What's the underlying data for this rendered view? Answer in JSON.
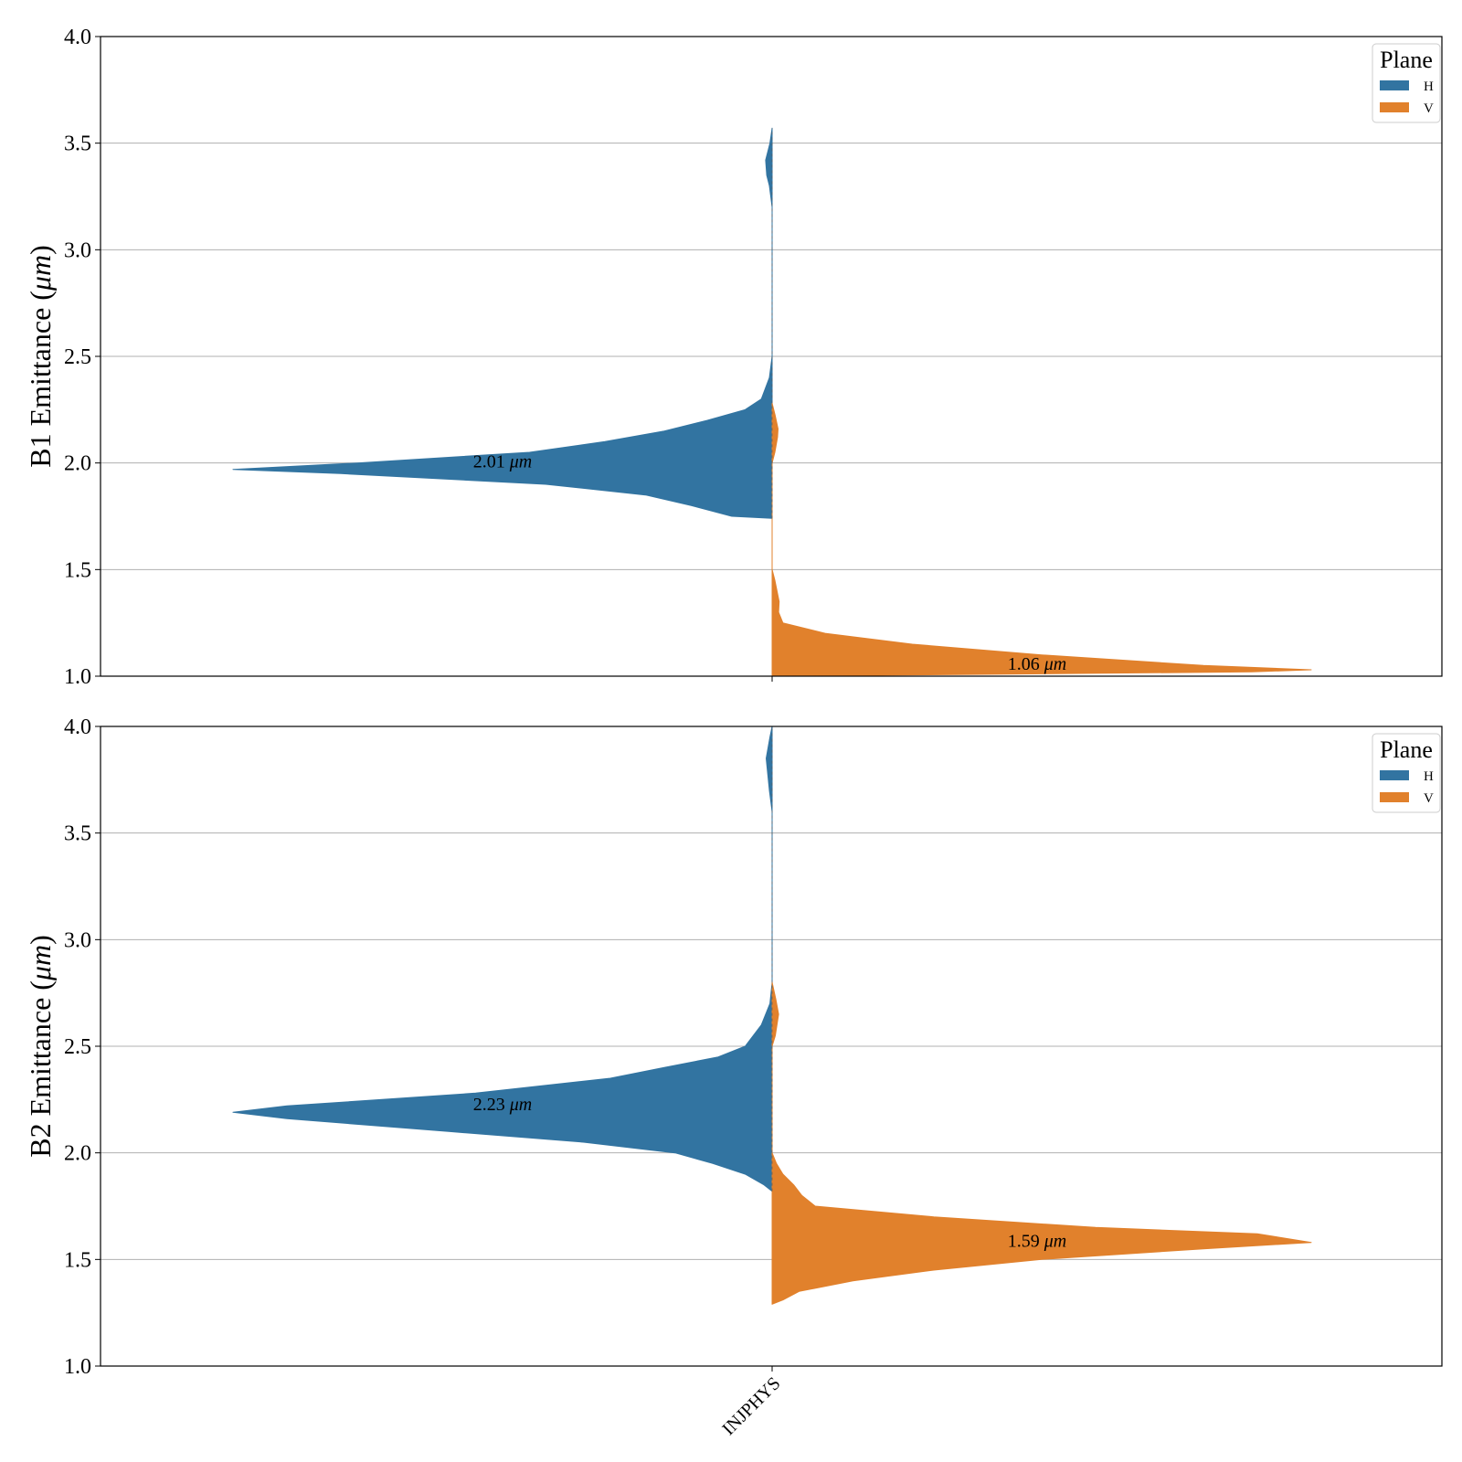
{
  "chart_data": [
    {
      "type": "violin",
      "category": "INJPHYS",
      "ylabel": "B1 Emittance (μm)",
      "ylim": [
        1.0,
        4.0
      ],
      "yticks": [
        "1.0",
        "1.5",
        "2.0",
        "2.5",
        "3.0",
        "3.5",
        "4.0"
      ],
      "grid": "horizontal",
      "legend": {
        "title": "Plane",
        "placement": "top-right",
        "entries": [
          "H",
          "V"
        ]
      },
      "series": [
        {
          "name": "H",
          "color": "#3274a1",
          "side": "left",
          "range": [
            1.74,
            3.57
          ],
          "median_label": "2.01 μm",
          "median": 2.01,
          "density": [
            [
              1.74,
              0.0
            ],
            [
              1.75,
              0.075
            ],
            [
              1.8,
              0.15
            ],
            [
              1.85,
              0.235
            ],
            [
              1.9,
              0.42
            ],
            [
              1.95,
              0.8
            ],
            [
              1.97,
              1.0
            ],
            [
              2.0,
              0.77
            ],
            [
              2.05,
              0.45
            ],
            [
              2.1,
              0.31
            ],
            [
              2.15,
              0.2
            ],
            [
              2.2,
              0.12
            ],
            [
              2.25,
              0.05
            ],
            [
              2.3,
              0.02
            ],
            [
              2.4,
              0.005
            ],
            [
              2.5,
              0.0
            ],
            [
              3.2,
              0.0
            ],
            [
              3.3,
              0.005
            ],
            [
              3.35,
              0.01
            ],
            [
              3.42,
              0.012
            ],
            [
              3.5,
              0.004
            ],
            [
              3.57,
              0.0
            ]
          ]
        },
        {
          "name": "V",
          "color": "#e1812c",
          "side": "right",
          "range": [
            1.0,
            2.28
          ],
          "median_label": "1.06 μm",
          "median": 1.06,
          "density": [
            [
              1.0,
              0.0
            ],
            [
              1.02,
              0.89
            ],
            [
              1.03,
              1.0
            ],
            [
              1.05,
              0.8
            ],
            [
              1.1,
              0.5
            ],
            [
              1.15,
              0.26
            ],
            [
              1.2,
              0.1
            ],
            [
              1.25,
              0.02
            ],
            [
              1.3,
              0.012
            ],
            [
              1.35,
              0.013
            ],
            [
              1.45,
              0.005
            ],
            [
              1.5,
              0.0
            ],
            [
              2.0,
              0.0
            ],
            [
              2.05,
              0.005
            ],
            [
              2.12,
              0.01
            ],
            [
              2.16,
              0.011
            ],
            [
              2.22,
              0.006
            ],
            [
              2.28,
              0.0
            ]
          ]
        }
      ]
    },
    {
      "type": "violin",
      "category": "INJPHYS",
      "ylabel": "B2 Emittance (μm)",
      "ylim": [
        1.0,
        4.0
      ],
      "yticks": [
        "1.0",
        "1.5",
        "2.0",
        "2.5",
        "3.0",
        "3.5",
        "4.0"
      ],
      "grid": "horizontal",
      "legend": {
        "title": "Plane",
        "placement": "top-right",
        "entries": [
          "H",
          "V"
        ]
      },
      "series": [
        {
          "name": "H",
          "color": "#3274a1",
          "side": "left",
          "range": [
            1.82,
            4.0
          ],
          "median_label": "2.23 μm",
          "median": 2.23,
          "density": [
            [
              1.82,
              0.0
            ],
            [
              1.85,
              0.015
            ],
            [
              1.9,
              0.05
            ],
            [
              1.95,
              0.11
            ],
            [
              2.0,
              0.18
            ],
            [
              2.05,
              0.35
            ],
            [
              2.1,
              0.6
            ],
            [
              2.16,
              0.9
            ],
            [
              2.19,
              1.0
            ],
            [
              2.22,
              0.9
            ],
            [
              2.28,
              0.55
            ],
            [
              2.35,
              0.3
            ],
            [
              2.4,
              0.2
            ],
            [
              2.45,
              0.1
            ],
            [
              2.5,
              0.05
            ],
            [
              2.6,
              0.02
            ],
            [
              2.7,
              0.004
            ],
            [
              2.8,
              0.0
            ],
            [
              3.6,
              0.0
            ],
            [
              3.7,
              0.005
            ],
            [
              3.85,
              0.011
            ],
            [
              3.95,
              0.004
            ],
            [
              4.0,
              0.0
            ]
          ]
        },
        {
          "name": "V",
          "color": "#e1812c",
          "side": "right",
          "range": [
            1.29,
            2.8
          ],
          "median_label": "1.59 μm",
          "median": 1.59,
          "density": [
            [
              1.29,
              0.0
            ],
            [
              1.31,
              0.02
            ],
            [
              1.35,
              0.05
            ],
            [
              1.4,
              0.15
            ],
            [
              1.45,
              0.3
            ],
            [
              1.5,
              0.5
            ],
            [
              1.55,
              0.8
            ],
            [
              1.58,
              1.0
            ],
            [
              1.62,
              0.9
            ],
            [
              1.65,
              0.6
            ],
            [
              1.7,
              0.3
            ],
            [
              1.75,
              0.08
            ],
            [
              1.8,
              0.055
            ],
            [
              1.85,
              0.04
            ],
            [
              1.9,
              0.02
            ],
            [
              1.95,
              0.008
            ],
            [
              2.0,
              0.0
            ],
            [
              2.5,
              0.0
            ],
            [
              2.55,
              0.006
            ],
            [
              2.65,
              0.012
            ],
            [
              2.72,
              0.007
            ],
            [
              2.8,
              0.0
            ]
          ]
        }
      ]
    }
  ]
}
